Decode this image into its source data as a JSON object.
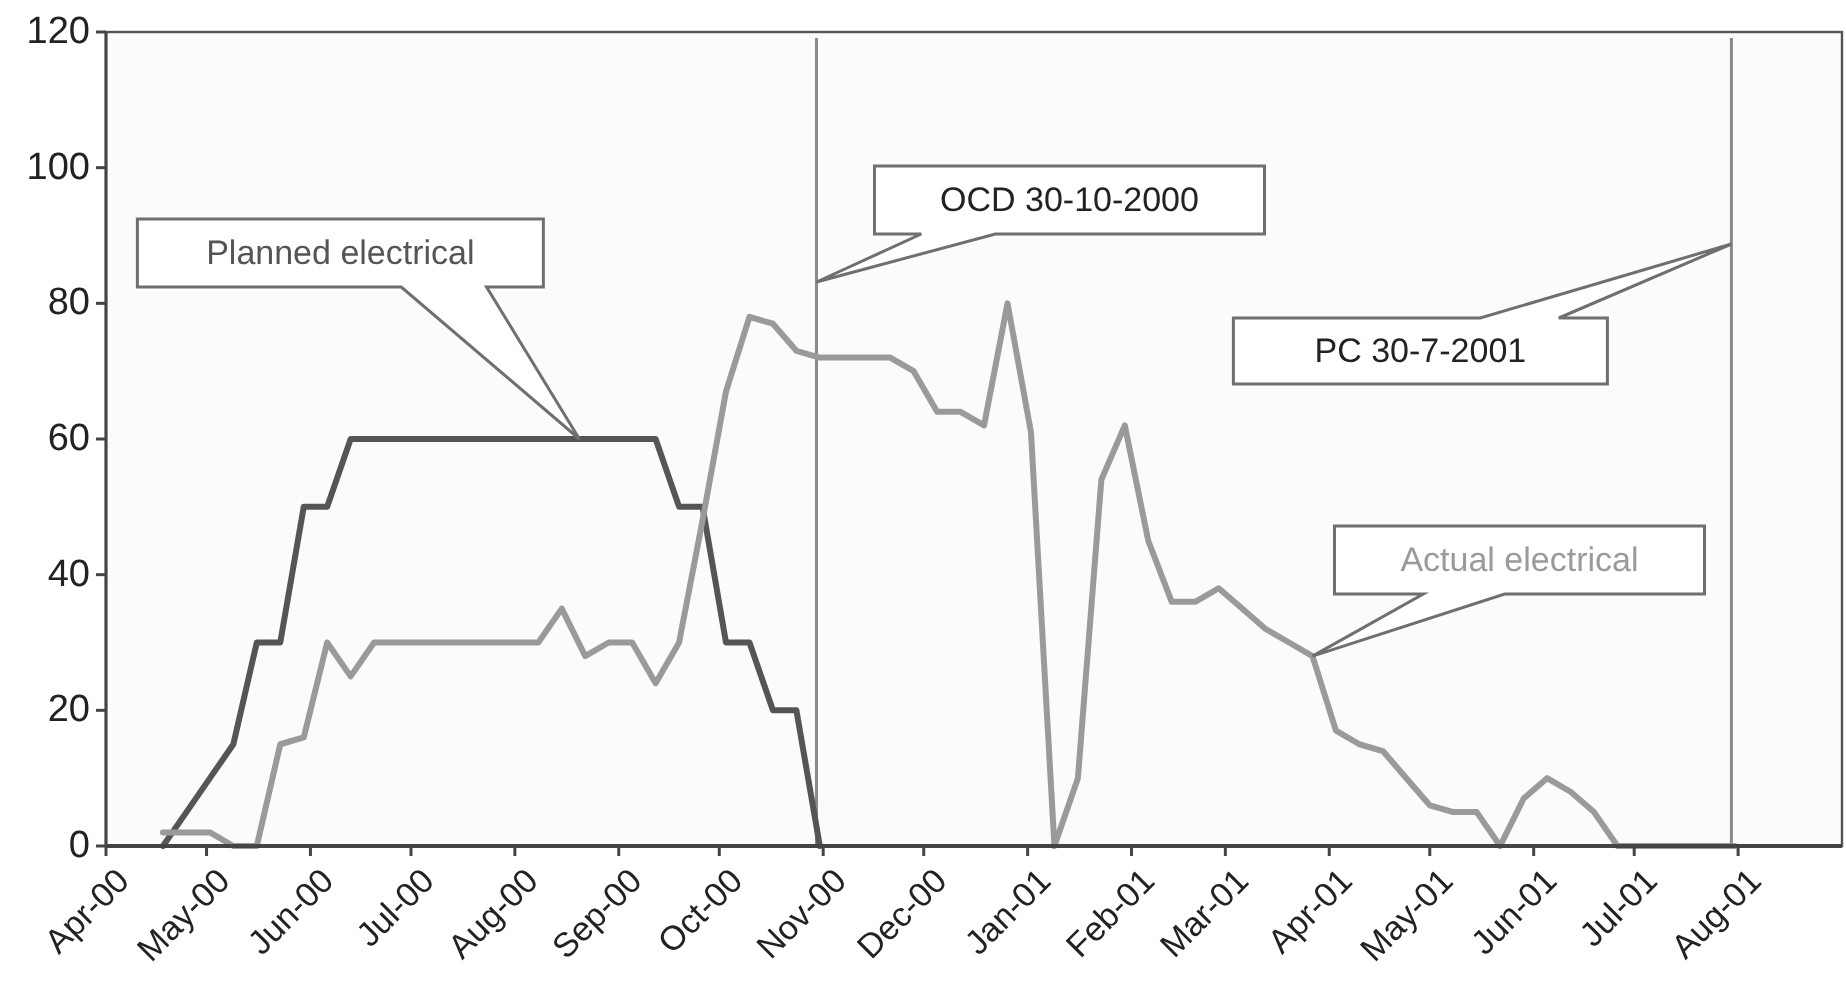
{
  "chart_data": {
    "type": "line",
    "xlim": [
      "2000-04-01",
      "2001-09-01"
    ],
    "xticks": [
      {
        "value": "2000-04-01",
        "label": "Apr-00"
      },
      {
        "value": "2000-05-01",
        "label": "May-00"
      },
      {
        "value": "2000-06-01",
        "label": "Jun-00"
      },
      {
        "value": "2000-07-01",
        "label": "Jul-00"
      },
      {
        "value": "2000-08-01",
        "label": "Aug-00"
      },
      {
        "value": "2000-09-01",
        "label": "Sep-00"
      },
      {
        "value": "2000-10-01",
        "label": "Oct-00"
      },
      {
        "value": "2000-11-01",
        "label": "Nov-00"
      },
      {
        "value": "2000-12-01",
        "label": "Dec-00"
      },
      {
        "value": "2001-01-01",
        "label": "Jan-01"
      },
      {
        "value": "2001-02-01",
        "label": "Feb-01"
      },
      {
        "value": "2001-03-01",
        "label": "Mar-01"
      },
      {
        "value": "2001-04-01",
        "label": "Apr-01"
      },
      {
        "value": "2001-05-01",
        "label": "May-01"
      },
      {
        "value": "2001-06-01",
        "label": "Jun-01"
      },
      {
        "value": "2001-07-01",
        "label": "Jul-01"
      },
      {
        "value": "2001-08-01",
        "label": "Aug-01"
      }
    ],
    "ylim": [
      0,
      120
    ],
    "yticks": [
      0,
      20,
      40,
      60,
      80,
      100,
      120
    ],
    "grid": false,
    "legend": false,
    "marker": "none",
    "line_style": "solid",
    "series": [
      {
        "name": "Planned electrical",
        "color": "#555555",
        "x": [
          "2000-04-18",
          "2000-04-25",
          "2000-05-02",
          "2000-05-09",
          "2000-05-16",
          "2000-05-23",
          "2000-05-30",
          "2000-06-06",
          "2000-06-13",
          "2000-09-12",
          "2000-09-19",
          "2000-09-26",
          "2000-10-03",
          "2000-10-10",
          "2000-10-17",
          "2000-10-24",
          "2000-10-31"
        ],
        "values": [
          0,
          5,
          10,
          15,
          30,
          30,
          50,
          50,
          60,
          60,
          50,
          50,
          30,
          30,
          20,
          20,
          0
        ]
      },
      {
        "name": "Actual electrical",
        "color": "#9a9a9a",
        "x": [
          "2000-04-18",
          "2000-04-25",
          "2000-05-02",
          "2000-05-09",
          "2000-05-16",
          "2000-05-23",
          "2000-05-30",
          "2000-06-06",
          "2000-06-13",
          "2000-06-20",
          "2000-08-08",
          "2000-08-15",
          "2000-08-22",
          "2000-08-29",
          "2000-09-05",
          "2000-09-12",
          "2000-09-19",
          "2000-09-26",
          "2000-10-03",
          "2000-10-10",
          "2000-10-17",
          "2000-10-24",
          "2000-10-31",
          "2000-11-07",
          "2000-11-14",
          "2000-11-21",
          "2000-11-28",
          "2000-12-05",
          "2000-12-12",
          "2000-12-19",
          "2000-12-26",
          "2001-01-02",
          "2001-01-09",
          "2001-01-16",
          "2001-01-23",
          "2001-01-30",
          "2001-02-06",
          "2001-02-13",
          "2001-02-20",
          "2001-02-27",
          "2001-03-06",
          "2001-03-13",
          "2001-03-20",
          "2001-03-27",
          "2001-04-03",
          "2001-04-10",
          "2001-04-17",
          "2001-04-24",
          "2001-05-01",
          "2001-05-08",
          "2001-05-15",
          "2001-05-22",
          "2001-05-29",
          "2001-06-05",
          "2001-06-12",
          "2001-06-19",
          "2001-06-26",
          "2001-07-31"
        ],
        "values": [
          2,
          2,
          2,
          0,
          0,
          15,
          16,
          30,
          25,
          30,
          30,
          35,
          28,
          30,
          30,
          24,
          30,
          48,
          67,
          78,
          77,
          73,
          72,
          72,
          72,
          72,
          70,
          64,
          64,
          62,
          80,
          61,
          0,
          10,
          54,
          62,
          45,
          36,
          36,
          38,
          35,
          32,
          30,
          28,
          17,
          15,
          14,
          10,
          6,
          5,
          5,
          0,
          7,
          10,
          8,
          5,
          0,
          0
        ]
      }
    ],
    "ref_lines": [
      {
        "axis": "x",
        "value": "2000-10-30",
        "color": "#8a8a8a"
      },
      {
        "axis": "x",
        "value": "2001-07-30",
        "color": "#8a8a8a"
      }
    ],
    "annotations": [
      "OCD 30-10-2000",
      "PC 30-7-2001"
    ]
  }
}
